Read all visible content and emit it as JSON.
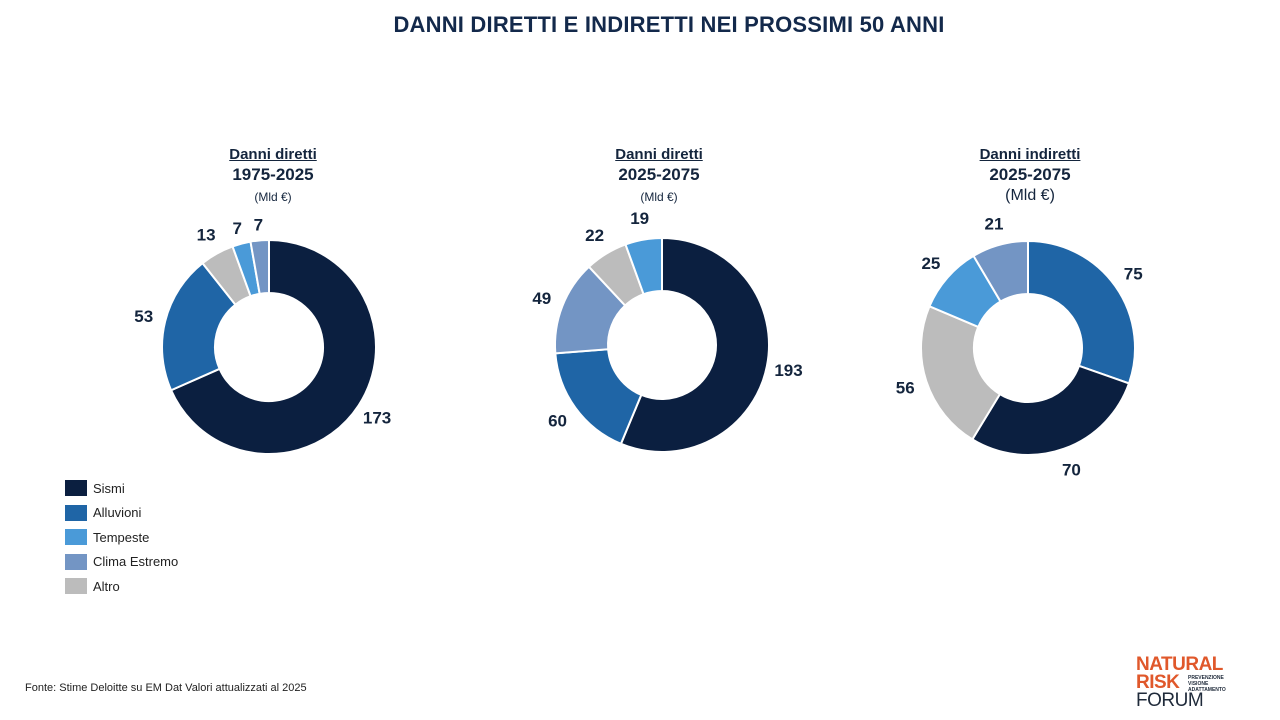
{
  "title": "DANNI DIRETTI E INDIRETTI NEI PROSSIMI 50 ANNI",
  "legend": [
    {
      "name": "Sismi",
      "color": "#0b1f40"
    },
    {
      "name": "Alluvioni",
      "color": "#1f65a6"
    },
    {
      "name": "Tempeste",
      "color": "#4a9ad8"
    },
    {
      "name": "Clima Estremo",
      "color": "#7395c4"
    },
    {
      "name": "Altro",
      "color": "#bcbcbc"
    }
  ],
  "source": "Fonte: Stime Deloitte su EM Dat  Valori attualizzati al 2025",
  "logo": {
    "line1": "NATURAL",
    "line2": "RISK",
    "line3": "FORUM",
    "tag1": "PREVENZIONE",
    "tag2": "VISIONE",
    "tag3": "ADATTAMENTO"
  },
  "chart_data": [
    {
      "type": "pie",
      "subtitle": "Danni diretti",
      "period": "1975-2025",
      "unit": "(Mld €)",
      "slices": [
        {
          "category": "Sismi",
          "value": 173
        },
        {
          "category": "Alluvioni",
          "value": 53
        },
        {
          "category": "Altro",
          "value": 13
        },
        {
          "category": "Tempeste",
          "value": 7
        },
        {
          "category": "Clima Estremo",
          "value": 7
        }
      ]
    },
    {
      "type": "pie",
      "subtitle": "Danni diretti",
      "period": "2025-2075",
      "unit": "(Mld €)",
      "slices": [
        {
          "category": "Sismi",
          "value": 193
        },
        {
          "category": "Alluvioni",
          "value": 60
        },
        {
          "category": "Clima Estremo",
          "value": 49
        },
        {
          "category": "Altro",
          "value": 22
        },
        {
          "category": "Tempeste",
          "value": 19
        }
      ]
    },
    {
      "type": "pie",
      "subtitle": "Danni indiretti",
      "period": "2025-2075",
      "unit": "(Mld €)",
      "slices": [
        {
          "category": "Alluvioni",
          "value": 75
        },
        {
          "category": "Sismi",
          "value": 70
        },
        {
          "category": "Altro",
          "value": 56
        },
        {
          "category": "Tempeste",
          "value": 25
        },
        {
          "category": "Clima Estremo",
          "value": 21
        }
      ]
    }
  ]
}
